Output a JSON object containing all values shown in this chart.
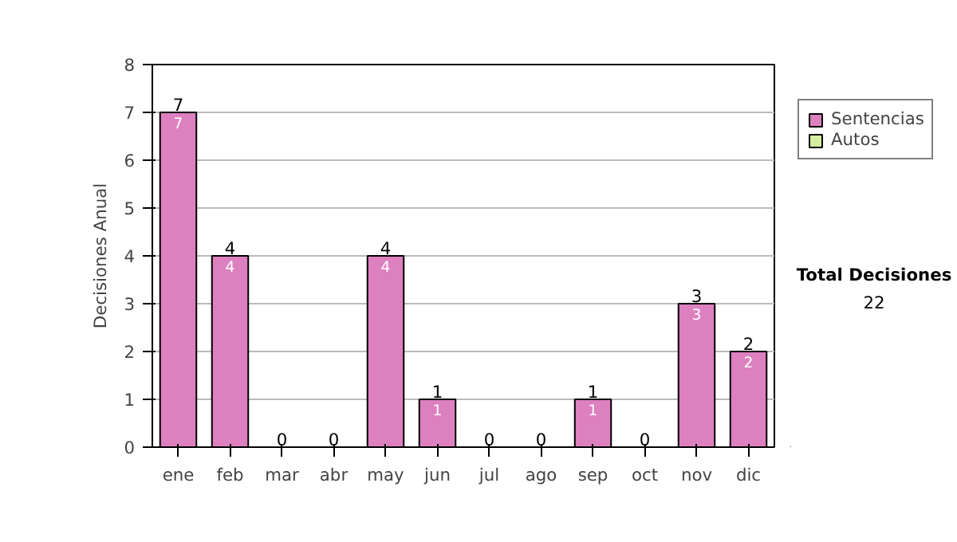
{
  "chart_data": {
    "type": "bar",
    "stacked": true,
    "ylabel": "Decisiones Anual",
    "categories": [
      "ene",
      "feb",
      "mar",
      "abr",
      "may",
      "jun",
      "jul",
      "ago",
      "sep",
      "oct",
      "nov",
      "dic"
    ],
    "series": [
      {
        "name": "Sentencias",
        "color": "#dd80c0",
        "values": [
          7,
          4,
          0,
          0,
          4,
          1,
          0,
          0,
          1,
          0,
          3,
          2
        ],
        "value_labels": [
          "7",
          "4",
          null,
          null,
          "4",
          "1",
          null,
          null,
          "1",
          null,
          "3",
          "2"
        ]
      },
      {
        "name": "Autos",
        "color": "#d4ee9f",
        "values": [
          0,
          0,
          0,
          0,
          0,
          0,
          0,
          0,
          0,
          0,
          0,
          0
        ]
      }
    ],
    "totals": [
      "7",
      "4",
      "0",
      "0",
      "4",
      "1",
      "0",
      "0",
      "1",
      "0",
      "3",
      "2"
    ],
    "ylim": [
      0,
      8
    ],
    "yticks": [
      0,
      1,
      2,
      3,
      4,
      5,
      6,
      7,
      8
    ],
    "grid": "y",
    "legend": "right",
    "annotations": [
      "Total Decisiones",
      "22"
    ]
  }
}
